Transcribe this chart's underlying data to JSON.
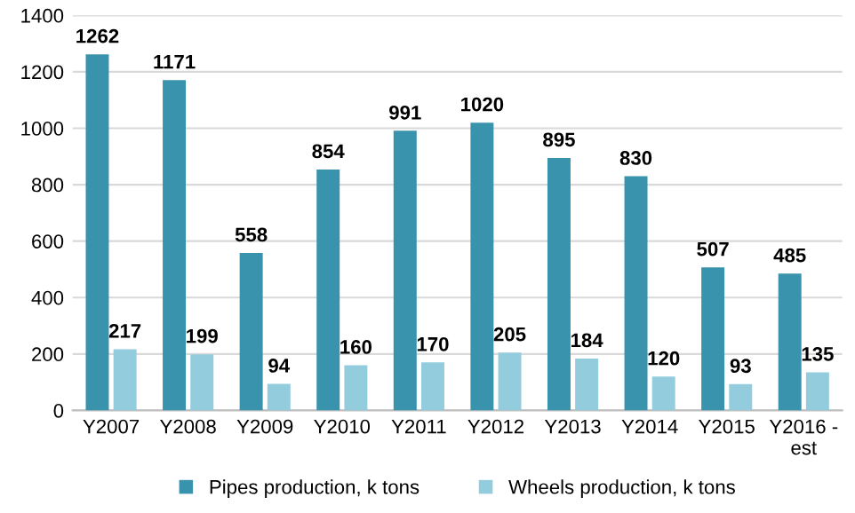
{
  "chart_data": {
    "type": "bar",
    "categories": [
      "Y2007",
      "Y2008",
      "Y2009",
      "Y2010",
      "Y2011",
      "Y2012",
      "Y2013",
      "Y2014",
      "Y2015",
      "Y2016 - est"
    ],
    "series": [
      {
        "name": "Pipes production, k tons",
        "color": "#3a93ad",
        "values": [
          1262,
          1171,
          558,
          854,
          991,
          1020,
          895,
          830,
          507,
          485
        ]
      },
      {
        "name": "Wheels production, k tons",
        "color": "#93cddd",
        "values": [
          217,
          199,
          94,
          160,
          170,
          205,
          184,
          120,
          93,
          135
        ]
      }
    ],
    "ylim": [
      0,
      1400
    ],
    "yticks": [
      0,
      200,
      400,
      600,
      800,
      1000,
      1200,
      1400
    ],
    "grid": "y",
    "legend": "bottom",
    "data_labels": true
  }
}
